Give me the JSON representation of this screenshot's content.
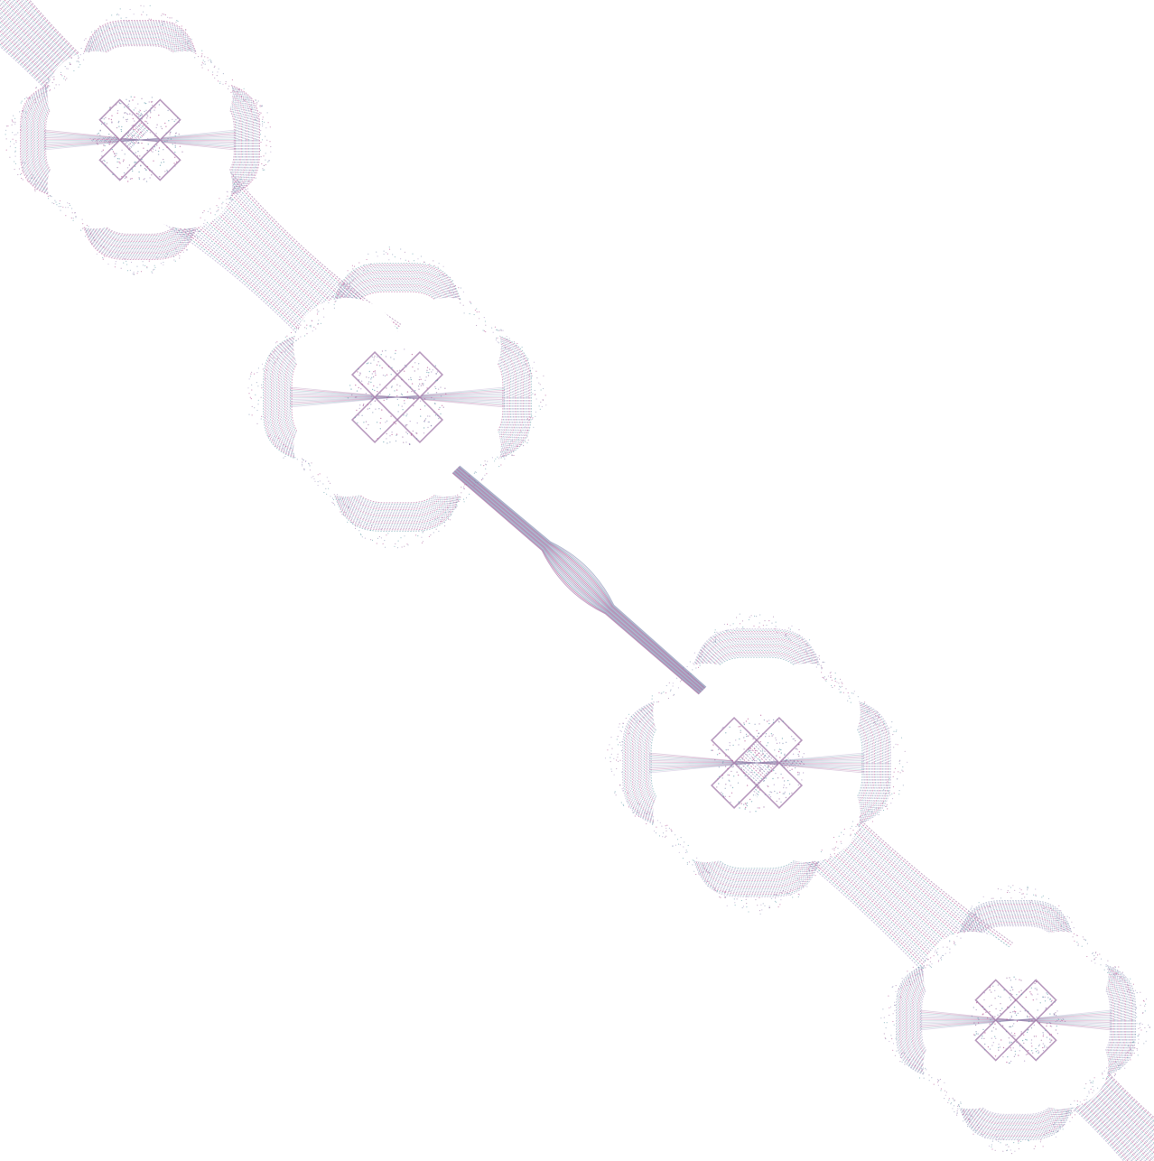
{
  "artwork": {
    "kind": "generative-attractor-pattern",
    "background": "#ffffff",
    "palette": {
      "mauve": "#9a6fa3",
      "magenta": "#b04d8f",
      "teal": "#5e9aa8",
      "lavender": "#a891c2",
      "steel": "#7f8fb0"
    }
  }
}
